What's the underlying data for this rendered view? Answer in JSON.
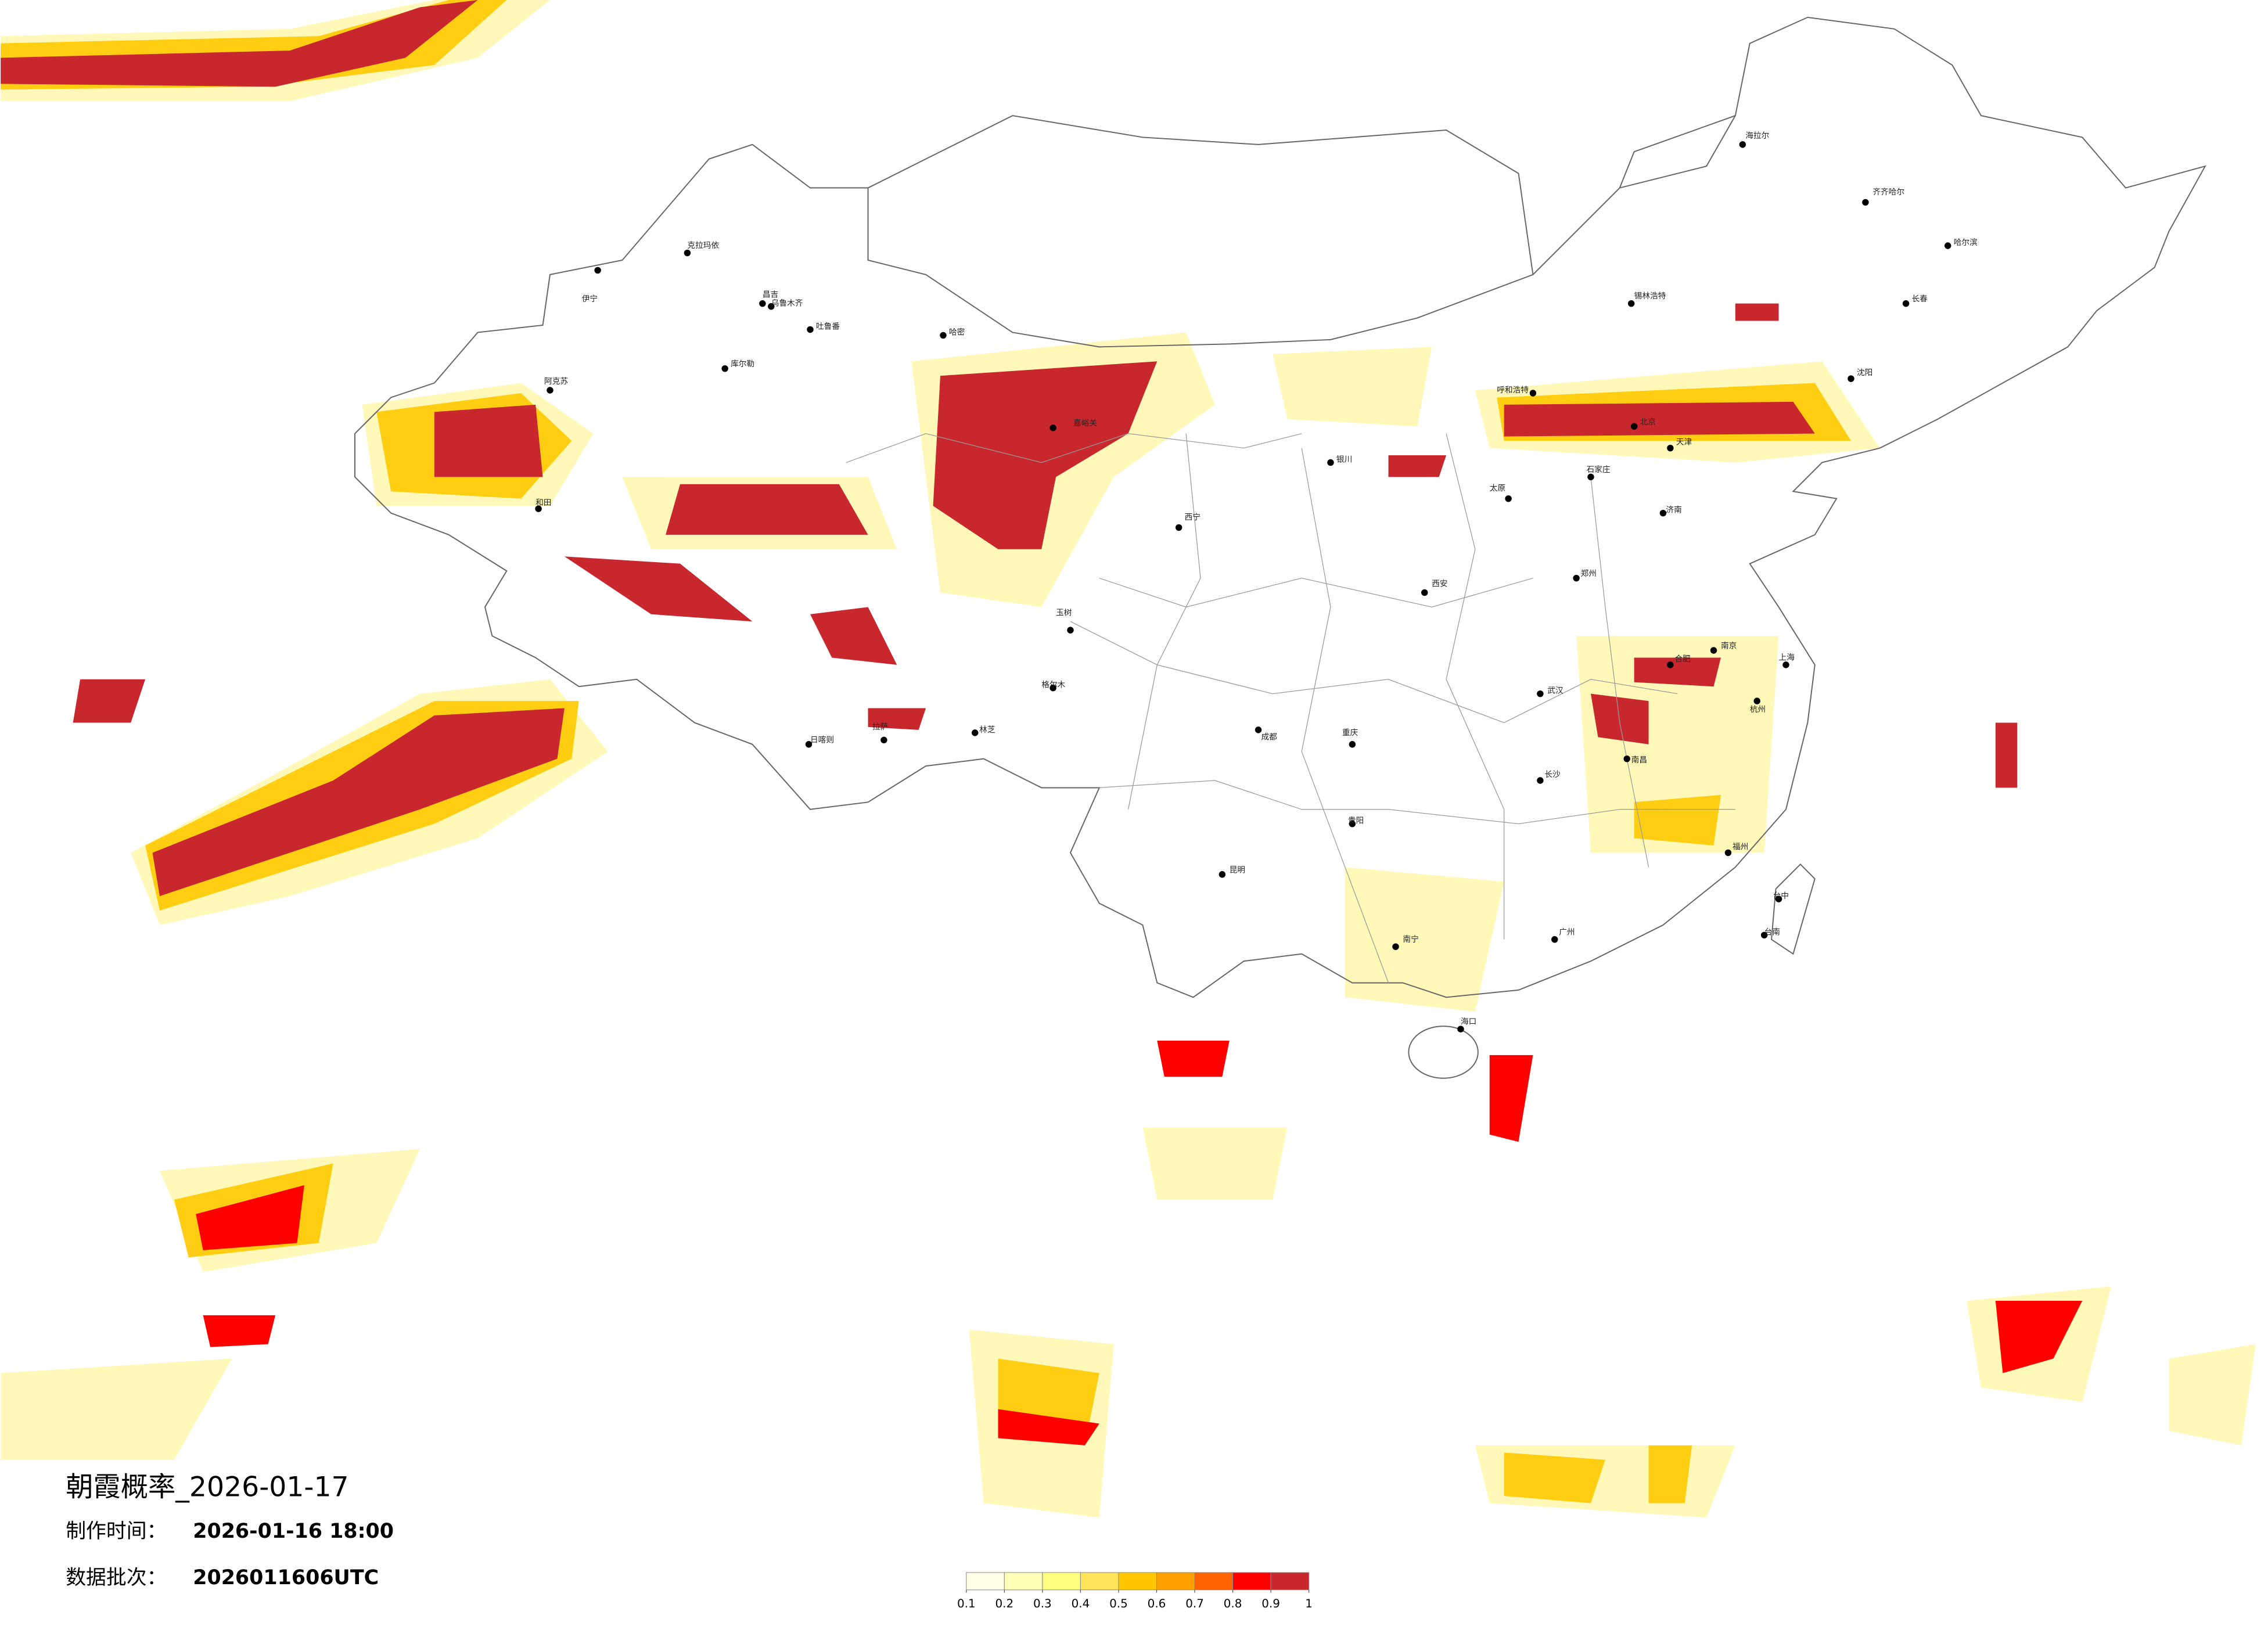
{
  "title": "朝霞概率_2026-01-17",
  "made_time": {
    "label": "制作时间：",
    "value": "2026-01-16 18:00"
  },
  "batch": {
    "label": "数据批次：",
    "value": "2026011606UTC"
  },
  "legend": {
    "ticks": [
      0.1,
      0.2,
      0.3,
      0.4,
      0.5,
      0.6,
      0.7,
      0.8,
      0.9,
      1
    ],
    "colors": [
      "#fffde6",
      "#ffffb8",
      "#ffff80",
      "#ffe45a",
      "#ffc800",
      "#ffa000",
      "#ff6400",
      "#ff0000",
      "#c8282d"
    ]
  },
  "cities": [
    "伊宁",
    "克拉玛依",
    "昌吉",
    "乌鲁木齐",
    "吐鲁番",
    "哈密",
    "库尔勒",
    "阿克苏",
    "和田",
    "嘉峪关",
    "格尔木",
    "日喀则",
    "拉萨",
    "林芝",
    "玉树",
    "西宁",
    "银川",
    "呼和浩特",
    "锡林浩特",
    "海拉尔",
    "齐齐哈尔",
    "哈尔滨",
    "长春",
    "沈阳",
    "北京",
    "天津",
    "石家庄",
    "太原",
    "济南",
    "郑州",
    "西安",
    "成都",
    "重庆",
    "武汉",
    "长沙",
    "南昌",
    "合肥",
    "南京",
    "上海",
    "杭州",
    "福州",
    "贵阳",
    "昆明",
    "南宁",
    "广州",
    "海口",
    "台中",
    "台南"
  ]
}
